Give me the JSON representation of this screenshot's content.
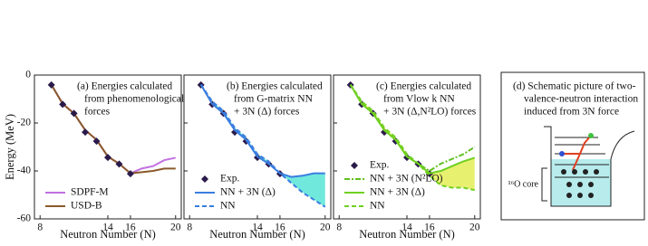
{
  "chart_data": [
    {
      "type": "line",
      "title_lines": [
        "(a) Energies calculated",
        "from phenomenological",
        "forces"
      ],
      "xlabel": "Neutron Number (N)",
      "ylabel": "Energy (MeV)",
      "x": [
        9,
        10,
        11,
        12,
        13,
        14,
        15,
        16,
        17,
        18,
        19,
        20
      ],
      "xlim": [
        7.5,
        20.5
      ],
      "xticks": [
        8,
        14,
        16,
        20
      ],
      "ylim": [
        -60,
        0
      ],
      "yticks": [
        -60,
        -40,
        -20,
        0
      ],
      "show_ytick_labels": true,
      "series": [
        {
          "name": "SDPF-M",
          "color": "#c070e0",
          "style": "line",
          "values": [
            -4,
            -12,
            -16,
            -23,
            -27,
            -34,
            -37,
            -41,
            -39,
            -38,
            -35.5,
            -34.5
          ]
        },
        {
          "name": "USD-B",
          "color": "#8a5a2a",
          "style": "line",
          "values": [
            -4,
            -12,
            -16,
            -23,
            -27,
            -34,
            -37,
            -41,
            -40.5,
            -40,
            -39,
            -39
          ]
        },
        {
          "color": "#2a1a4a",
          "style": "marker",
          "values": [
            -4.1,
            -12.2,
            -16,
            -23.8,
            -27.6,
            -34.4,
            -37.1,
            -41.2,
            null,
            null,
            null,
            null
          ]
        }
      ]
    },
    {
      "type": "line",
      "title_lines": [
        "(b) Energies calculated",
        "from G-matrix NN",
        "+ 3N (Δ) forces"
      ],
      "xlabel": "Neutron Number (N)",
      "x": [
        9,
        10,
        11,
        12,
        13,
        14,
        15,
        16,
        17,
        18,
        19,
        20
      ],
      "xlim": [
        7.5,
        20.5
      ],
      "xticks": [
        8,
        14,
        16,
        20
      ],
      "ylim": [
        -60,
        0
      ],
      "yticks": [
        -60,
        -40,
        -20,
        0
      ],
      "show_ytick_labels": false,
      "fill_between": [
        1,
        2
      ],
      "fill_color": "#70e8dc",
      "series": [
        {
          "name": "Exp.",
          "color": "#2a1a4a",
          "style": "marker",
          "values": [
            -4.1,
            -12.2,
            -16,
            -23.8,
            -27.6,
            -34.4,
            -37.1,
            -41.2,
            null,
            null,
            null,
            null
          ]
        },
        {
          "name": "NN + 3N (Δ)",
          "color": "#3a7de0",
          "style": "line",
          "values": [
            -4,
            -12,
            -16,
            -23,
            -27,
            -34,
            -37,
            -41,
            -42.5,
            -42,
            -41,
            -41
          ]
        },
        {
          "name": "NN",
          "color": "#3a7de0",
          "style": "dash",
          "values": [
            -4,
            -11,
            -15,
            -22,
            -26,
            -33,
            -36,
            -41,
            -45,
            -49,
            -52,
            -55
          ]
        }
      ]
    },
    {
      "type": "line",
      "title_lines": [
        "(c) Energies calculated",
        "from Vlow k NN",
        "+ 3N (Δ,N²LO) forces"
      ],
      "xlabel": "Neutron Number (N)",
      "x": [
        9,
        10,
        11,
        12,
        13,
        14,
        15,
        16,
        17,
        18,
        19,
        20
      ],
      "xlim": [
        7.5,
        20.5
      ],
      "xticks": [
        8,
        14,
        16,
        20
      ],
      "ylim": [
        -60,
        0
      ],
      "yticks": [
        -60,
        -40,
        -20,
        0
      ],
      "show_ytick_labels": false,
      "fill_between": [
        2,
        3
      ],
      "fill_color": "#e8f070",
      "series": [
        {
          "name": "Exp.",
          "color": "#2a1a4a",
          "style": "marker",
          "values": [
            -4.1,
            -12.2,
            -16,
            -23.8,
            -27.6,
            -34.4,
            -37.1,
            -41.2,
            null,
            null,
            null,
            null
          ]
        },
        {
          "name": "NN + 3N (N²LO)",
          "color": "#60c020",
          "style": "dashdot",
          "values": [
            -4,
            -12,
            -16,
            -23,
            -27,
            -34,
            -37,
            -40,
            -37,
            -35,
            -33,
            -30
          ]
        },
        {
          "name": "NN + 3N (Δ)",
          "color": "#70d020",
          "style": "line",
          "values": [
            -4,
            -12,
            -16,
            -23,
            -27,
            -34,
            -37,
            -41,
            -40,
            -38,
            -36,
            -34.5
          ]
        },
        {
          "name": "NN",
          "color": "#70d020",
          "style": "dash",
          "values": [
            -4,
            -11,
            -15,
            -22,
            -26,
            -33,
            -37,
            -42,
            -46,
            -47,
            -47,
            -48
          ]
        }
      ]
    }
  ],
  "schematic": {
    "title_lines": [
      "(d) Schematic picture of two-",
      "valence-neutron interaction",
      "induced from 3N force"
    ],
    "core_label": "¹⁶O core"
  }
}
